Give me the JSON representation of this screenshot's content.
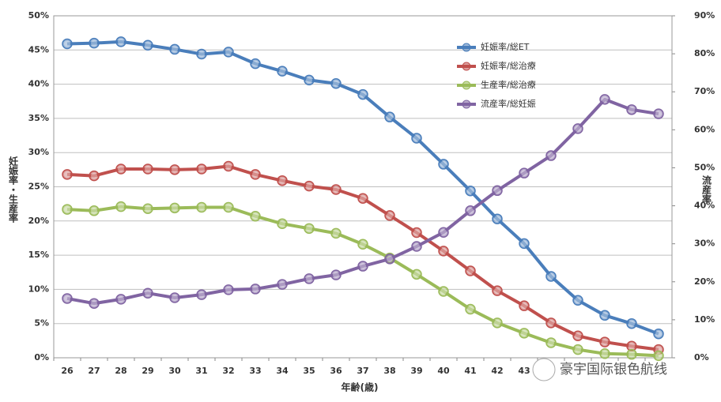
{
  "chart_data": {
    "type": "line",
    "xlabel": "年齢(歳)",
    "ylabel": "妊娠率・生産率",
    "y2label": "流産率",
    "watermark": "豪宇国际银色航线",
    "categories": [
      "26",
      "27",
      "28",
      "29",
      "30",
      "31",
      "32",
      "33",
      "34",
      "35",
      "36",
      "37",
      "38",
      "39",
      "40",
      "41",
      "42",
      "43",
      null,
      null,
      null,
      null,
      null
    ],
    "ylim": [
      0,
      50
    ],
    "yticks": [
      {
        "value": 0,
        "label": "0%"
      },
      {
        "value": 5,
        "label": "5%"
      },
      {
        "value": 10,
        "label": "10%"
      },
      {
        "value": 15,
        "label": "15%"
      },
      {
        "value": 20,
        "label": "20%"
      },
      {
        "value": 25,
        "label": "25%"
      },
      {
        "value": 30,
        "label": "30%"
      },
      {
        "value": 35,
        "label": "35%"
      },
      {
        "value": 40,
        "label": "40%"
      },
      {
        "value": 45,
        "label": "45%"
      },
      {
        "value": 50,
        "label": "50%"
      }
    ],
    "y2lim": [
      0,
      90
    ],
    "y2ticks": [
      {
        "value": 0,
        "label": "0%"
      },
      {
        "value": 10,
        "label": "10%"
      },
      {
        "value": 20,
        "label": "20%"
      },
      {
        "value": 30,
        "label": "30%"
      },
      {
        "value": 40,
        "label": "40%"
      },
      {
        "value": 50,
        "label": "50%"
      },
      {
        "value": 60,
        "label": "60%"
      },
      {
        "value": 70,
        "label": "70%"
      },
      {
        "value": 80,
        "label": "80%"
      },
      {
        "value": 90,
        "label": "90%"
      }
    ],
    "grid": true,
    "legend": "upper right",
    "series": [
      {
        "name": "妊娠率/総ET",
        "color": "#4a7ebb",
        "values": [
          45.9,
          46,
          46.2,
          45.7,
          45.1,
          44.4,
          44.7,
          43,
          41.9,
          40.6,
          40.1,
          38.5,
          35.2,
          32.1,
          28.3,
          24.4,
          20.3,
          16.7,
          11.9,
          8.4,
          6.2,
          5,
          3.5
        ]
      },
      {
        "name": "妊娠率/総治療",
        "color": "#c0504d",
        "values": [
          26.8,
          26.6,
          27.6,
          27.6,
          27.5,
          27.6,
          28,
          26.8,
          25.9,
          25.1,
          24.6,
          23.3,
          20.8,
          18.3,
          15.6,
          12.7,
          9.8,
          7.6,
          5.1,
          3.2,
          2.3,
          1.7,
          1.2
        ]
      },
      {
        "name": "生産率/総治療",
        "color": "#9bbb59",
        "values": [
          21.7,
          21.5,
          22.1,
          21.8,
          21.9,
          22,
          22,
          20.7,
          19.6,
          18.9,
          18.2,
          16.6,
          14.6,
          12.2,
          9.7,
          7.1,
          5.1,
          3.6,
          2.2,
          1.2,
          0.6,
          0.5,
          0.3
        ]
      },
      {
        "name": "流産率/総妊娠",
        "color": "#8064a2",
        "axis": "y2",
        "values": [
          15.6,
          14.3,
          15.4,
          17,
          15.8,
          16.6,
          17.9,
          18.1,
          19.3,
          20.8,
          21.8,
          24.1,
          26,
          29.3,
          33,
          38.7,
          44,
          48.6,
          53.2,
          60.3,
          68,
          65.3,
          64.2
        ]
      }
    ]
  }
}
